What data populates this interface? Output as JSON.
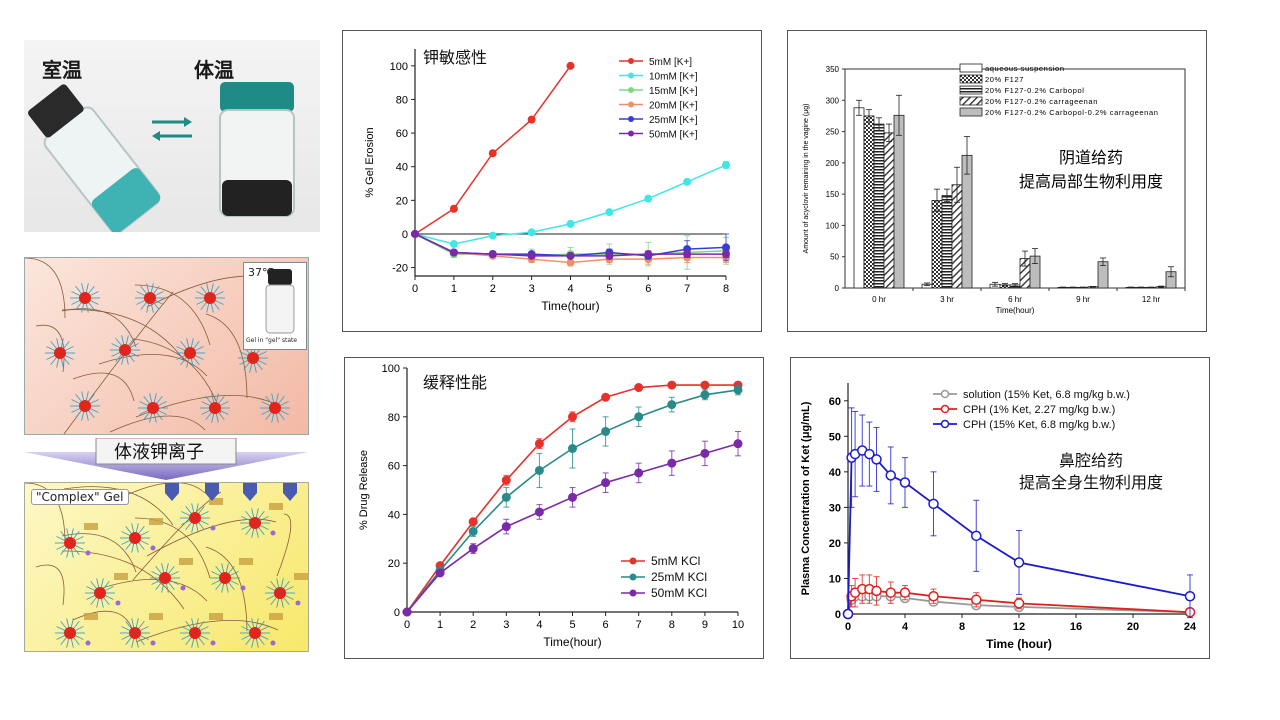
{
  "photos": {
    "room_temp_label": "室温",
    "body_temp_label": "体温",
    "temp_37_label": "37℃",
    "gel_state_label": "Gel in \"gel\" state",
    "arrow_label": "体液钾离子",
    "complex_gel_label": "\"Complex\" Gel",
    "colors": {
      "liquid": "#3fb3b3",
      "cap_green": "#1f8a86",
      "vial_dark": "#222",
      "pink_bg": "#f6c8b8",
      "yellow_bg": "#fdf59a",
      "arrow_purple": "#8a78c8"
    }
  },
  "chart_data": [
    {
      "id": "potassium-sensitivity",
      "type": "line",
      "title": "钾敏感性",
      "xlabel": "Time(hour)",
      "ylabel": "% Gel Erosion",
      "xlim": [
        0,
        8
      ],
      "ylim": [
        -25,
        110
      ],
      "xticks": [
        "0",
        "1",
        "2",
        "3",
        "4",
        "5",
        "6",
        "7",
        "8"
      ],
      "yticks": [
        "-20",
        "0",
        "20",
        "40",
        "60",
        "80",
        "100"
      ],
      "legend_position": "top-right",
      "series": [
        {
          "name": "5mM [K+]",
          "color": "#e8312b",
          "x": [
            0,
            1,
            2,
            3,
            4
          ],
          "y": [
            0,
            15,
            48,
            68,
            100
          ],
          "err": [
            0,
            1,
            1,
            1,
            1
          ]
        },
        {
          "name": "10mM [K+]",
          "color": "#41e6e6",
          "x": [
            0,
            1,
            2,
            3,
            4,
            5,
            6,
            7,
            8
          ],
          "y": [
            0,
            -6,
            -1,
            1,
            6,
            13,
            21,
            31,
            41
          ],
          "err": [
            0,
            1,
            1,
            1,
            1,
            1,
            1,
            1,
            2
          ]
        },
        {
          "name": "15mM [K+]",
          "color": "#7ed87e",
          "x": [
            0,
            1,
            2,
            3,
            4,
            5,
            6,
            7,
            8
          ],
          "y": [
            0,
            -12,
            -12,
            -13,
            -12,
            -12,
            -12,
            -11,
            -10
          ],
          "err": [
            0,
            2,
            2,
            4,
            4,
            6,
            7,
            10,
            8
          ]
        },
        {
          "name": "20mM [K+]",
          "color": "#f0906a",
          "x": [
            0,
            1,
            2,
            3,
            4,
            5,
            6,
            7,
            8
          ],
          "y": [
            0,
            -11,
            -13,
            -15,
            -17,
            -15,
            -15,
            -14,
            -14
          ],
          "err": [
            0,
            1,
            1,
            2,
            2,
            2,
            3,
            3,
            3
          ]
        },
        {
          "name": "25mM [K+]",
          "color": "#3a3ad8",
          "x": [
            0,
            1,
            2,
            3,
            4,
            5,
            6,
            7,
            8
          ],
          "y": [
            0,
            -11,
            -12,
            -12,
            -13,
            -11,
            -13,
            -9,
            -8
          ],
          "err": [
            0,
            1,
            1,
            1,
            1,
            2,
            2,
            5,
            8
          ]
        },
        {
          "name": "50mM [K+]",
          "color": "#7a2aa8",
          "x": [
            0,
            1,
            2,
            3,
            4,
            5,
            6,
            7,
            8
          ],
          "y": [
            0,
            -11,
            -12,
            -13,
            -13,
            -13,
            -12,
            -12,
            -12
          ],
          "err": [
            0,
            1,
            1,
            1,
            1,
            2,
            2,
            2,
            2
          ]
        }
      ]
    },
    {
      "id": "vaginal-delivery",
      "type": "bar",
      "title": "阴道给药\n提高局部生物利用度",
      "xlabel": "Time(hour)",
      "ylabel": "Amount of acyclovir remaining in the vagine (μg)",
      "ylim": [
        0,
        350
      ],
      "yticks": [
        "0",
        "50",
        "100",
        "150",
        "200",
        "250",
        "300",
        "350"
      ],
      "categories": [
        "0 hr",
        "3 hr",
        "6 hr",
        "9 hr",
        "12 hr"
      ],
      "legend_position": "top",
      "series": [
        {
          "name": "aqueous suspension",
          "pattern": "white",
          "values": [
            288,
            6,
            6,
            1,
            1
          ],
          "err": [
            12,
            2,
            3,
            0.5,
            0.5
          ]
        },
        {
          "name": "20% F127",
          "pattern": "checker",
          "values": [
            275,
            140,
            5,
            1,
            1
          ],
          "err": [
            10,
            18,
            2,
            0.5,
            0.5
          ]
        },
        {
          "name": "20% F127-0.2% Carbopol",
          "pattern": "hstripe",
          "values": [
            262,
            148,
            5,
            1,
            1
          ],
          "err": [
            10,
            10,
            2,
            0.5,
            0.5
          ]
        },
        {
          "name": "20% F127-0.2% carrageenan",
          "pattern": "diag",
          "values": [
            248,
            165,
            47,
            2,
            2
          ],
          "err": [
            14,
            28,
            12,
            0.5,
            1
          ]
        },
        {
          "name": "20% F127-0.2% Carbopol-0.2% carrageenan",
          "pattern": "gray",
          "values": [
            276,
            212,
            51,
            42,
            26
          ],
          "err": [
            32,
            30,
            12,
            6,
            8
          ]
        }
      ]
    },
    {
      "id": "sustained-release",
      "type": "line",
      "title": "缓释性能",
      "xlabel": "Time(hour)",
      "ylabel": "% Drug Release",
      "xlim": [
        0,
        10
      ],
      "ylim": [
        0,
        100
      ],
      "xticks": [
        "0",
        "1",
        "2",
        "3",
        "4",
        "5",
        "6",
        "7",
        "8",
        "9",
        "10"
      ],
      "yticks": [
        "0",
        "20",
        "40",
        "60",
        "80",
        "100"
      ],
      "legend_position": "bottom-right",
      "series": [
        {
          "name": "5mM   KCl",
          "color": "#e8312b",
          "x": [
            0,
            1,
            2,
            3,
            4,
            5,
            6,
            7,
            8,
            9,
            10
          ],
          "y": [
            0,
            19,
            37,
            54,
            69,
            80,
            88,
            92,
            93,
            93,
            93
          ],
          "err": [
            0,
            1,
            1,
            2,
            2,
            2,
            1,
            1,
            1,
            1,
            1
          ]
        },
        {
          "name": "25mM KCl",
          "color": "#2a8a8a",
          "x": [
            0,
            1,
            2,
            3,
            4,
            5,
            6,
            7,
            8,
            9,
            10
          ],
          "y": [
            0,
            17,
            33,
            47,
            58,
            67,
            74,
            80,
            85,
            89,
            91
          ],
          "err": [
            0,
            1,
            2,
            4,
            7,
            8,
            6,
            4,
            3,
            2,
            2
          ]
        },
        {
          "name": "50mM KCl",
          "color": "#7a2aa8",
          "x": [
            0,
            1,
            2,
            3,
            4,
            5,
            6,
            7,
            8,
            9,
            10
          ],
          "y": [
            0,
            16,
            26,
            35,
            41,
            47,
            53,
            57,
            61,
            65,
            69
          ],
          "err": [
            0,
            1,
            2,
            3,
            3,
            4,
            4,
            4,
            5,
            5,
            5
          ]
        }
      ]
    },
    {
      "id": "nasal-delivery",
      "type": "line",
      "title": "鼻腔给药\n提高全身生物利用度",
      "xlabel": "Time (hour)",
      "ylabel": "Plasma Concentration of  Ket (μg/mL)",
      "xlim": [
        0,
        24
      ],
      "ylim": [
        0,
        65
      ],
      "xticks": [
        "0",
        "4",
        "8",
        "12",
        "16",
        "20",
        "24"
      ],
      "yticks": [
        "0",
        "10",
        "20",
        "30",
        "40",
        "50",
        "60"
      ],
      "legend_position": "top",
      "series": [
        {
          "name": "solution (15% Ket, 6.8 mg/kg b.w.)",
          "color": "#999999",
          "x": [
            0,
            0.25,
            0.5,
            1,
            1.5,
            2,
            3,
            4,
            6,
            9,
            12,
            24
          ],
          "y": [
            0,
            4,
            5,
            5,
            5,
            5,
            5,
            4.5,
            3.5,
            2.5,
            2,
            0.5
          ],
          "err": [
            0,
            1,
            1,
            1,
            1,
            1,
            1,
            1,
            1,
            1,
            1,
            0.5
          ]
        },
        {
          "name": "CPH (1% Ket, 2.27 mg/kg b.w.)",
          "color": "#e02020",
          "x": [
            0,
            0.25,
            0.5,
            1,
            1.5,
            2,
            3,
            4,
            6,
            9,
            12,
            24
          ],
          "y": [
            0,
            5,
            6,
            7,
            7,
            6.5,
            6,
            6,
            5,
            4,
            3,
            0.5
          ],
          "err": [
            0,
            3,
            4,
            4,
            4,
            4,
            3,
            2,
            2,
            2,
            1.5,
            0.5
          ]
        },
        {
          "name": "CPH (15% Ket, 6.8 mg/kg b.w.)",
          "color": "#1a1ad0",
          "x": [
            0,
            0.25,
            0.5,
            1,
            1.5,
            2,
            3,
            4,
            6,
            9,
            12,
            24
          ],
          "y": [
            0,
            44,
            45,
            46,
            45,
            43.5,
            39,
            37,
            31,
            22,
            14.5,
            5
          ],
          "err": [
            0,
            14,
            12,
            10,
            9,
            9,
            8,
            7,
            9,
            10,
            9,
            6
          ]
        }
      ]
    }
  ]
}
